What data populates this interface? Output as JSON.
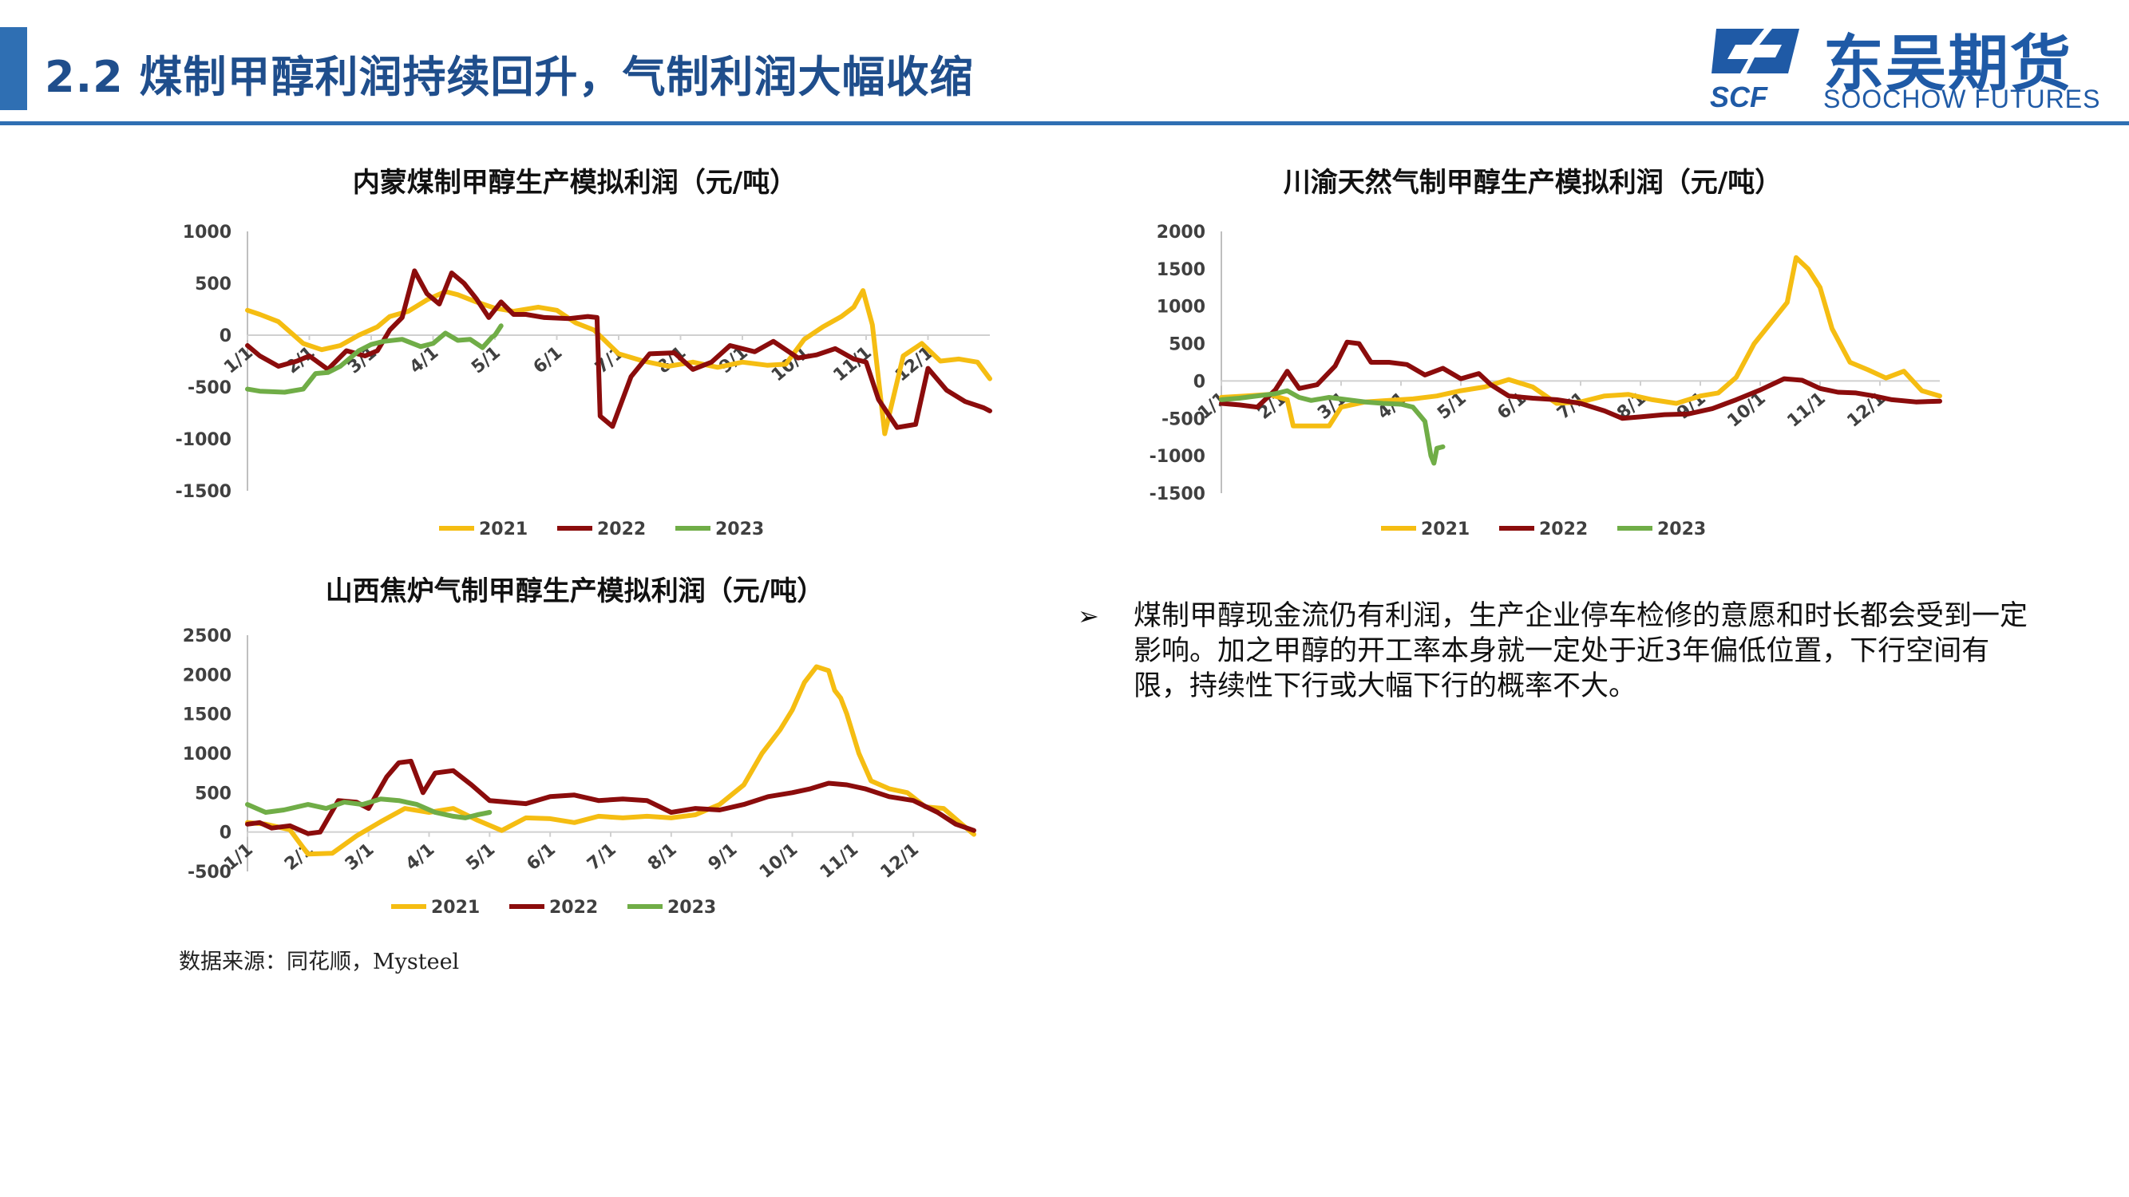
{
  "header": {
    "title": "2.2 煤制甲醇利润持续回升，气制利润大幅收缩"
  },
  "logo": {
    "cn": "东吴期货",
    "en": "SOOCHOW FUTURES",
    "mark": "SCF"
  },
  "colors": {
    "y2021": "#f5bd12",
    "y2022": "#8b0c0c",
    "y2023": "#70ad47",
    "accent": "#2f6fb3",
    "title": "#1f4e8c"
  },
  "bullet": {
    "icon": "arrow-bullet-icon",
    "text": "煤制甲醇现金流仍有利润，生产企业停车检修的意愿和时长都会受到一定影响。加之甲醇的开工率本身就一定处于近3年偏低位置，下行空间有限，持续性下行或大幅下行的概率不大。"
  },
  "source": "数据来源：同花顺，Mysteel",
  "chart_data": [
    {
      "type": "line",
      "title": "内蒙煤制甲醇生产模拟利润（元/吨）",
      "ylim": [
        -1500,
        1000
      ],
      "yticks": [
        "1000",
        "500",
        "0",
        "-500",
        "-1000",
        "-1500"
      ],
      "xticks": [
        "1/1",
        "2/1",
        "3/1",
        "4/1",
        "5/1",
        "6/1",
        "7/1",
        "8/1",
        "9/1",
        "10/1",
        "11/1",
        "12/1"
      ],
      "legend": [
        "2021",
        "2022",
        "2023"
      ],
      "legend_position": "bottom",
      "series": [
        {
          "name": "2021",
          "x": [
            0,
            0.2,
            0.5,
            0.9,
            1.2,
            1.5,
            1.8,
            2.1,
            2.3,
            2.6,
            2.9,
            3.2,
            3.4,
            3.7,
            4.0,
            4.3,
            4.7,
            5.0,
            5.3,
            5.6,
            6.0,
            6.4,
            6.8,
            7.2,
            7.6,
            8.0,
            8.4,
            8.7,
            9.0,
            9.3,
            9.6,
            9.8,
            9.95,
            10.1,
            10.3,
            10.6,
            10.9,
            11.2,
            11.5,
            11.8,
            12.0
          ],
          "values": [
            240,
            200,
            130,
            -80,
            -140,
            -100,
            0,
            80,
            180,
            230,
            340,
            420,
            390,
            320,
            260,
            230,
            270,
            240,
            120,
            50,
            -180,
            -250,
            -300,
            -260,
            -310,
            -260,
            -290,
            -280,
            -40,
            80,
            180,
            270,
            430,
            100,
            -950,
            -200,
            -80,
            -250,
            -230,
            -260,
            -420
          ]
        },
        {
          "name": "2022",
          "x": [
            0,
            0.2,
            0.5,
            0.8,
            1.0,
            1.3,
            1.6,
            1.9,
            2.1,
            2.3,
            2.5,
            2.7,
            2.9,
            3.1,
            3.3,
            3.5,
            3.7,
            3.9,
            4.1,
            4.3,
            4.5,
            4.8,
            5.2,
            5.5,
            5.65,
            5.7,
            5.9,
            6.2,
            6.5,
            6.9,
            7.2,
            7.5,
            7.8,
            8.2,
            8.5,
            8.9,
            9.2,
            9.5,
            9.8,
            10.0,
            10.2,
            10.5,
            10.8,
            11.0,
            11.3,
            11.6,
            11.9,
            12.0
          ],
          "values": [
            -100,
            -200,
            -300,
            -250,
            -200,
            -330,
            -150,
            -200,
            -150,
            50,
            170,
            620,
            400,
            300,
            600,
            500,
            350,
            170,
            320,
            200,
            200,
            170,
            160,
            180,
            170,
            -780,
            -880,
            -400,
            -180,
            -170,
            -330,
            -260,
            -100,
            -160,
            -60,
            -220,
            -190,
            -130,
            -230,
            -260,
            -620,
            -890,
            -860,
            -320,
            -530,
            -640,
            -700,
            -730
          ]
        },
        {
          "name": "2023",
          "x": [
            0,
            0.2,
            0.6,
            0.9,
            1.1,
            1.3,
            1.5,
            1.8,
            2.0,
            2.2,
            2.5,
            2.8,
            3.0,
            3.2,
            3.4,
            3.6,
            3.8,
            3.95,
            4.0,
            4.1
          ],
          "values": [
            -520,
            -540,
            -550,
            -520,
            -370,
            -360,
            -300,
            -150,
            -90,
            -60,
            -40,
            -110,
            -80,
            20,
            -50,
            -40,
            -120,
            -20,
            0,
            90
          ]
        }
      ]
    },
    {
      "type": "line",
      "title": "川渝天然气制甲醇生产模拟利润（元/吨）",
      "ylim": [
        -1500,
        2000
      ],
      "yticks": [
        "2000",
        "1500",
        "1000",
        "500",
        "0",
        "-500",
        "-1000",
        "-1500"
      ],
      "xticks": [
        "1/1",
        "2/1",
        "3/1",
        "4/1",
        "5/1",
        "6/1",
        "7/1",
        "8/1",
        "9/1",
        "10/1",
        "11/1",
        "12/1"
      ],
      "legend": [
        "2021",
        "2022",
        "2023"
      ],
      "legend_position": "bottom",
      "series": [
        {
          "name": "2021",
          "x": [
            0,
            0.4,
            0.8,
            1.1,
            1.2,
            1.5,
            1.8,
            2.0,
            2.4,
            2.8,
            3.2,
            3.6,
            4.0,
            4.4,
            4.8,
            5.2,
            5.6,
            6.0,
            6.4,
            6.8,
            7.2,
            7.6,
            8.0,
            8.3,
            8.6,
            8.9,
            9.2,
            9.45,
            9.6,
            9.8,
            10.0,
            10.2,
            10.5,
            10.8,
            11.1,
            11.4,
            11.7,
            12.0
          ],
          "values": [
            -220,
            -200,
            -180,
            -250,
            -600,
            -600,
            -600,
            -350,
            -280,
            -260,
            -240,
            -200,
            -130,
            -80,
            20,
            -80,
            -300,
            -280,
            -200,
            -180,
            -250,
            -300,
            -200,
            -160,
            50,
            500,
            800,
            1050,
            1650,
            1500,
            1250,
            700,
            250,
            150,
            40,
            130,
            -130,
            -200
          ]
        },
        {
          "name": "2022",
          "x": [
            0,
            0.3,
            0.6,
            0.9,
            1.1,
            1.3,
            1.6,
            1.9,
            2.1,
            2.3,
            2.5,
            2.8,
            3.1,
            3.4,
            3.7,
            4.0,
            4.3,
            4.5,
            4.8,
            5.2,
            5.6,
            6.0,
            6.4,
            6.7,
            7.0,
            7.4,
            7.8,
            8.2,
            8.6,
            9.0,
            9.4,
            9.7,
            10.0,
            10.3,
            10.6,
            10.9,
            11.2,
            11.6,
            12.0
          ],
          "values": [
            -300,
            -320,
            -350,
            -120,
            130,
            -100,
            -50,
            200,
            520,
            500,
            250,
            250,
            220,
            80,
            170,
            30,
            100,
            -50,
            -200,
            -230,
            -250,
            -300,
            -400,
            -500,
            -480,
            -450,
            -440,
            -370,
            -250,
            -120,
            30,
            10,
            -100,
            -150,
            -160,
            -200,
            -250,
            -280,
            -270
          ]
        },
        {
          "name": "2023",
          "x": [
            0,
            0.3,
            0.6,
            0.9,
            1.1,
            1.3,
            1.5,
            1.8,
            2.1,
            2.4,
            2.7,
            3.0,
            3.2,
            3.4,
            3.5,
            3.55,
            3.6,
            3.7
          ],
          "values": [
            -250,
            -230,
            -200,
            -170,
            -130,
            -220,
            -260,
            -220,
            -250,
            -280,
            -300,
            -310,
            -350,
            -540,
            -1000,
            -1100,
            -900,
            -880
          ]
        }
      ]
    },
    {
      "type": "line",
      "title": "山西焦炉气制甲醇生产模拟利润（元/吨）",
      "ylim": [
        -500,
        2500
      ],
      "yticks": [
        "2500",
        "2000",
        "1500",
        "1000",
        "500",
        "0",
        "-500"
      ],
      "xticks": [
        "1/1",
        "2/1",
        "3/1",
        "4/1",
        "5/1",
        "6/1",
        "7/1",
        "8/1",
        "9/1",
        "10/1",
        "11/1",
        "12/1"
      ],
      "legend": [
        "2021",
        "2022",
        "2023"
      ],
      "legend_position": "bottom",
      "series": [
        {
          "name": "2021",
          "x": [
            0,
            0.3,
            0.7,
            1.0,
            1.4,
            1.8,
            2.2,
            2.6,
            3.0,
            3.4,
            3.8,
            4.2,
            4.6,
            5.0,
            5.4,
            5.8,
            6.2,
            6.6,
            7.0,
            7.4,
            7.8,
            8.2,
            8.5,
            8.8,
            9.0,
            9.2,
            9.4,
            9.6,
            9.7,
            9.8,
            9.9,
            10.1,
            10.3,
            10.6,
            10.9,
            11.2,
            11.5,
            11.8,
            12.0
          ],
          "values": [
            120,
            100,
            30,
            -280,
            -270,
            -50,
            130,
            300,
            250,
            300,
            150,
            20,
            180,
            170,
            120,
            200,
            180,
            200,
            180,
            220,
            350,
            600,
            1000,
            1300,
            1550,
            1900,
            2100,
            2050,
            1800,
            1700,
            1500,
            1000,
            650,
            550,
            500,
            320,
            300,
            100,
            -30
          ]
        },
        {
          "name": "2022",
          "x": [
            0,
            0.2,
            0.4,
            0.7,
            1.0,
            1.2,
            1.5,
            1.8,
            2.0,
            2.3,
            2.5,
            2.7,
            2.9,
            3.1,
            3.4,
            3.7,
            4.0,
            4.3,
            4.6,
            5.0,
            5.4,
            5.8,
            6.2,
            6.6,
            7.0,
            7.4,
            7.8,
            8.2,
            8.6,
            9.0,
            9.3,
            9.6,
            9.9,
            10.2,
            10.6,
            11.0,
            11.4,
            11.7,
            12.0
          ],
          "values": [
            100,
            120,
            50,
            80,
            -20,
            0,
            400,
            380,
            300,
            700,
            880,
            900,
            500,
            750,
            780,
            600,
            400,
            380,
            360,
            450,
            470,
            400,
            420,
            400,
            250,
            300,
            280,
            350,
            450,
            500,
            550,
            620,
            600,
            550,
            450,
            400,
            250,
            100,
            20
          ]
        },
        {
          "name": "2023",
          "x": [
            0,
            0.3,
            0.6,
            1.0,
            1.3,
            1.6,
            1.9,
            2.2,
            2.5,
            2.8,
            3.1,
            3.4,
            3.6,
            3.8,
            4.0
          ],
          "values": [
            350,
            250,
            280,
            350,
            300,
            380,
            350,
            420,
            400,
            350,
            250,
            200,
            180,
            220,
            250
          ]
        }
      ]
    }
  ]
}
